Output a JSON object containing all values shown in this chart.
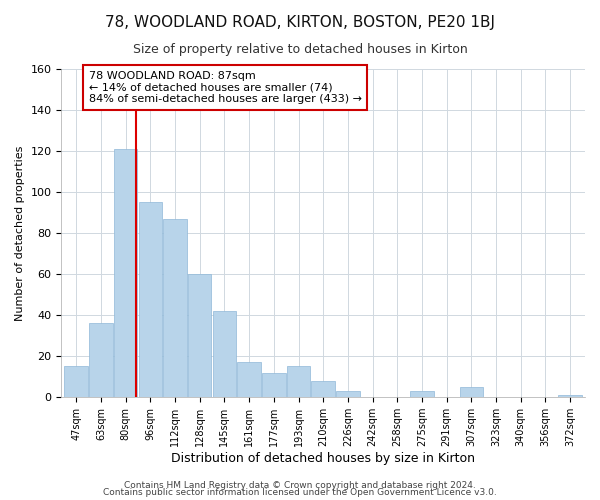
{
  "title": "78, WOODLAND ROAD, KIRTON, BOSTON, PE20 1BJ",
  "subtitle": "Size of property relative to detached houses in Kirton",
  "xlabel": "Distribution of detached houses by size in Kirton",
  "ylabel": "Number of detached properties",
  "bar_labels": [
    "47sqm",
    "63sqm",
    "80sqm",
    "96sqm",
    "112sqm",
    "128sqm",
    "145sqm",
    "161sqm",
    "177sqm",
    "193sqm",
    "210sqm",
    "226sqm",
    "242sqm",
    "258sqm",
    "275sqm",
    "291sqm",
    "307sqm",
    "323sqm",
    "340sqm",
    "356sqm",
    "372sqm"
  ],
  "bar_heights": [
    15,
    36,
    121,
    95,
    87,
    60,
    42,
    17,
    12,
    15,
    8,
    3,
    0,
    0,
    3,
    0,
    5,
    0,
    0,
    0,
    1
  ],
  "bar_color": "#b8d4ea",
  "bar_edge_color": "#8fb8d8",
  "highlight_bar_index": 2,
  "red_line_color": "#dd0000",
  "ylim": [
    0,
    160
  ],
  "yticks": [
    0,
    20,
    40,
    60,
    80,
    100,
    120,
    140,
    160
  ],
  "annotation_title": "78 WOODLAND ROAD: 87sqm",
  "annotation_line1": "← 14% of detached houses are smaller (74)",
  "annotation_line2": "84% of semi-detached houses are larger (433) →",
  "annotation_box_color": "#ffffff",
  "annotation_box_edge": "#cc0000",
  "footer1": "Contains HM Land Registry data © Crown copyright and database right 2024.",
  "footer2": "Contains public sector information licensed under the Open Government Licence v3.0.",
  "background_color": "#ffffff",
  "grid_color": "#d0d8e0",
  "title_fontsize": 11,
  "subtitle_fontsize": 9,
  "xlabel_fontsize": 9,
  "ylabel_fontsize": 8,
  "tick_fontsize": 8,
  "annotation_fontsize": 8
}
